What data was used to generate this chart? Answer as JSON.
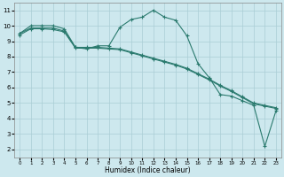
{
  "xlabel": "Humidex (Indice chaleur)",
  "bg_color": "#cde8ee",
  "grid_color": "#aacdd5",
  "line_color": "#2a7a6e",
  "xlim": [
    -0.5,
    23.5
  ],
  "ylim": [
    1.5,
    11.5
  ],
  "x_ticks": [
    0,
    1,
    2,
    3,
    4,
    5,
    6,
    7,
    8,
    9,
    10,
    11,
    12,
    13,
    14,
    15,
    16,
    17,
    18,
    19,
    20,
    21,
    22,
    23
  ],
  "y_ticks": [
    2,
    3,
    4,
    5,
    6,
    7,
    8,
    9,
    10,
    11
  ],
  "curve1_x": [
    0,
    1,
    2,
    3,
    4,
    5,
    6,
    7,
    8,
    9,
    10,
    11,
    12,
    13,
    14,
    15,
    16,
    17,
    18,
    19,
    20,
    21,
    22,
    23
  ],
  "curve1_y": [
    9.5,
    10.0,
    10.0,
    10.0,
    9.8,
    8.6,
    8.5,
    8.7,
    8.7,
    9.9,
    10.4,
    10.55,
    11.0,
    10.55,
    10.35,
    9.35,
    7.55,
    6.65,
    5.55,
    5.45,
    5.15,
    4.85,
    2.2,
    4.5
  ],
  "curve2_x": [
    0,
    1,
    2,
    3,
    4,
    5,
    6,
    7,
    8,
    9,
    10,
    11,
    12,
    13,
    14,
    15,
    16,
    17,
    18,
    19,
    20,
    21,
    22,
    23
  ],
  "curve2_y": [
    9.4,
    9.8,
    9.8,
    9.75,
    9.6,
    8.55,
    8.55,
    8.55,
    8.5,
    8.45,
    8.25,
    8.05,
    7.85,
    7.65,
    7.45,
    7.2,
    6.85,
    6.5,
    6.1,
    5.75,
    5.35,
    4.95,
    4.8,
    4.65
  ],
  "curve3_x": [
    0,
    1,
    2,
    3,
    4,
    5,
    6,
    7,
    8,
    9,
    10,
    11,
    12,
    13,
    14,
    15,
    16,
    17,
    18,
    19,
    20,
    21,
    22,
    23
  ],
  "curve3_y": [
    9.5,
    9.85,
    9.85,
    9.85,
    9.65,
    8.6,
    8.6,
    8.6,
    8.55,
    8.5,
    8.3,
    8.1,
    7.9,
    7.7,
    7.5,
    7.25,
    6.9,
    6.55,
    6.15,
    5.8,
    5.4,
    5.0,
    4.85,
    4.7
  ]
}
